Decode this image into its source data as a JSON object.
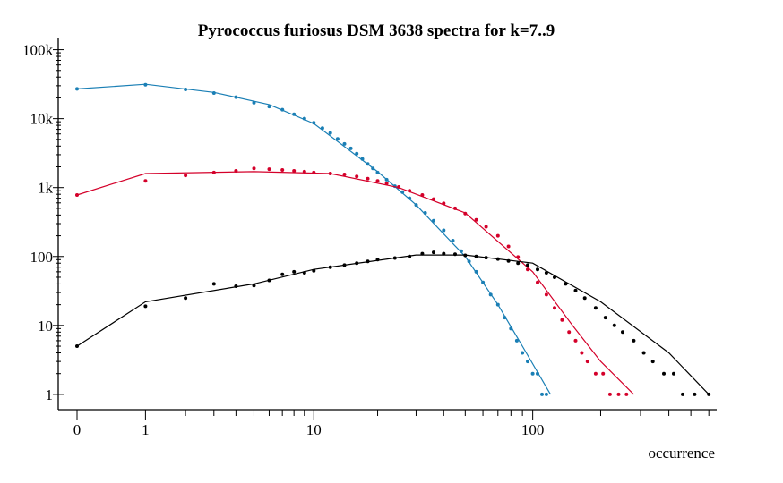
{
  "chart_data": {
    "type": "scatter",
    "title": "Pyrococcus furiosus DSM 3638 spectra for k=7..9",
    "xlabel": "occurrence",
    "ylabel": "",
    "x_scale": "log1p",
    "y_scale": "log",
    "xlim": [
      0,
      650
    ],
    "ylim": [
      0.6,
      150000
    ],
    "x_ticks": [
      0,
      1,
      10,
      100
    ],
    "x_tick_labels": [
      "0",
      "1",
      "10",
      "100"
    ],
    "y_ticks": [
      1,
      10,
      100,
      1000,
      10000,
      100000
    ],
    "y_tick_labels": [
      "1",
      "10",
      "100",
      "1k",
      "10k",
      "100k"
    ],
    "grid": false,
    "legend": "none",
    "series": [
      {
        "color": "#1a7fb5",
        "points": [
          [
            0,
            27000
          ],
          [
            1,
            31000
          ],
          [
            2,
            26500
          ],
          [
            3,
            23500
          ],
          [
            4,
            20500
          ],
          [
            5,
            17000
          ],
          [
            6,
            15000
          ],
          [
            7,
            13500
          ],
          [
            8,
            11600
          ],
          [
            9,
            10000
          ],
          [
            10,
            8700
          ],
          [
            11,
            7300
          ],
          [
            12,
            6200
          ],
          [
            13,
            5100
          ],
          [
            14,
            4300
          ],
          [
            15,
            3700
          ],
          [
            16,
            3100
          ],
          [
            17,
            2600
          ],
          [
            18,
            2200
          ],
          [
            19,
            1900
          ],
          [
            20,
            1650
          ],
          [
            22,
            1300
          ],
          [
            24,
            1050
          ],
          [
            26,
            860
          ],
          [
            28,
            700
          ],
          [
            30,
            560
          ],
          [
            33,
            430
          ],
          [
            36,
            330
          ],
          [
            40,
            240
          ],
          [
            44,
            170
          ],
          [
            48,
            120
          ],
          [
            52,
            85
          ],
          [
            56,
            60
          ],
          [
            60,
            42
          ],
          [
            65,
            28
          ],
          [
            70,
            20
          ],
          [
            75,
            13
          ],
          [
            80,
            9
          ],
          [
            85,
            6
          ],
          [
            90,
            4
          ],
          [
            95,
            3
          ],
          [
            100,
            2
          ],
          [
            105,
            2
          ],
          [
            110,
            1
          ],
          [
            115,
            1
          ]
        ],
        "fit": [
          [
            0,
            27000
          ],
          [
            1,
            31500
          ],
          [
            3,
            24000
          ],
          [
            6,
            16000
          ],
          [
            10,
            8500
          ],
          [
            20,
            1700
          ],
          [
            30,
            560
          ],
          [
            50,
            100
          ],
          [
            70,
            20
          ],
          [
            90,
            5
          ],
          [
            120,
            1
          ]
        ]
      },
      {
        "color": "#d4002a",
        "points": [
          [
            0,
            780
          ],
          [
            1,
            1250
          ],
          [
            2,
            1500
          ],
          [
            3,
            1650
          ],
          [
            4,
            1750
          ],
          [
            5,
            1900
          ],
          [
            6,
            1850
          ],
          [
            7,
            1800
          ],
          [
            8,
            1750
          ],
          [
            9,
            1700
          ],
          [
            10,
            1650
          ],
          [
            12,
            1600
          ],
          [
            14,
            1550
          ],
          [
            16,
            1450
          ],
          [
            18,
            1350
          ],
          [
            20,
            1250
          ],
          [
            22,
            1150
          ],
          [
            25,
            1020
          ],
          [
            28,
            900
          ],
          [
            32,
            780
          ],
          [
            36,
            680
          ],
          [
            40,
            590
          ],
          [
            45,
            500
          ],
          [
            50,
            420
          ],
          [
            56,
            340
          ],
          [
            62,
            270
          ],
          [
            70,
            200
          ],
          [
            78,
            140
          ],
          [
            86,
            98
          ],
          [
            95,
            65
          ],
          [
            105,
            42
          ],
          [
            115,
            28
          ],
          [
            125,
            18
          ],
          [
            135,
            12
          ],
          [
            145,
            8
          ],
          [
            155,
            6
          ],
          [
            165,
            4
          ],
          [
            175,
            3
          ],
          [
            190,
            2
          ],
          [
            205,
            2
          ],
          [
            220,
            1
          ],
          [
            240,
            1
          ],
          [
            260,
            1
          ]
        ],
        "fit": [
          [
            0,
            780
          ],
          [
            1,
            1600
          ],
          [
            5,
            1700
          ],
          [
            12,
            1600
          ],
          [
            25,
            1000
          ],
          [
            50,
            430
          ],
          [
            100,
            60
          ],
          [
            150,
            10
          ],
          [
            200,
            3
          ],
          [
            280,
            1
          ]
        ]
      },
      {
        "color": "#000000",
        "points": [
          [
            0,
            5
          ],
          [
            1,
            19
          ],
          [
            2,
            25
          ],
          [
            3,
            40
          ],
          [
            4,
            37
          ],
          [
            5,
            38
          ],
          [
            6,
            45
          ],
          [
            7,
            55
          ],
          [
            8,
            60
          ],
          [
            9,
            58
          ],
          [
            10,
            62
          ],
          [
            12,
            70
          ],
          [
            14,
            75
          ],
          [
            16,
            80
          ],
          [
            18,
            85
          ],
          [
            20,
            90
          ],
          [
            24,
            95
          ],
          [
            28,
            100
          ],
          [
            32,
            110
          ],
          [
            36,
            115
          ],
          [
            40,
            110
          ],
          [
            45,
            108
          ],
          [
            50,
            104
          ],
          [
            56,
            100
          ],
          [
            62,
            96
          ],
          [
            70,
            92
          ],
          [
            78,
            86
          ],
          [
            86,
            80
          ],
          [
            95,
            75
          ],
          [
            105,
            65
          ],
          [
            115,
            58
          ],
          [
            125,
            50
          ],
          [
            140,
            40
          ],
          [
            155,
            32
          ],
          [
            170,
            25
          ],
          [
            190,
            18
          ],
          [
            210,
            13
          ],
          [
            230,
            10
          ],
          [
            250,
            8
          ],
          [
            280,
            6
          ],
          [
            310,
            4
          ],
          [
            340,
            3
          ],
          [
            380,
            2
          ],
          [
            420,
            2
          ],
          [
            460,
            1
          ],
          [
            520,
            1
          ],
          [
            600,
            1
          ]
        ],
        "fit": [
          [
            0,
            5
          ],
          [
            1,
            22
          ],
          [
            5,
            40
          ],
          [
            10,
            65
          ],
          [
            30,
            105
          ],
          [
            50,
            105
          ],
          [
            100,
            80
          ],
          [
            200,
            22
          ],
          [
            400,
            4
          ],
          [
            600,
            1
          ]
        ]
      }
    ]
  }
}
